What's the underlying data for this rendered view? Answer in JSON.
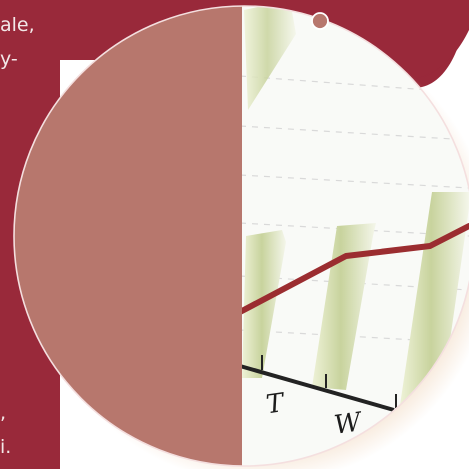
{
  "text_fragments": [
    "ale,",
    "y-",
    ",",
    "i."
  ],
  "chart_photo": {
    "day_labels": [
      "T",
      "W"
    ]
  },
  "colors": {
    "background": "#99293a",
    "circle_overlay": "#b7776d",
    "line": "#9b2d30",
    "bar": "#c9d3a0"
  }
}
